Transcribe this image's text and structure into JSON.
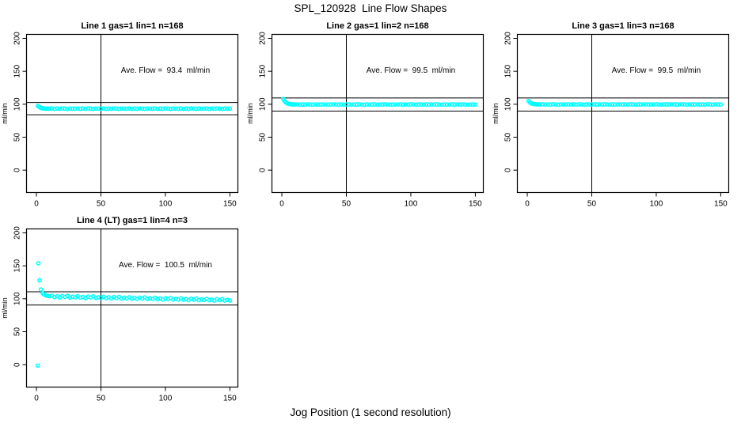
{
  "main_title": "SPL_120928  Line Flow Shapes",
  "xlabel_bottom": "Jog Position (1 second resolution)",
  "colors": {
    "points": "#00FFFF",
    "axis": "#000000",
    "background": "#FFFFFF"
  },
  "chart_data": [
    {
      "type": "scatter",
      "title": "Line 1 gas=1 lin=1 n=168",
      "ylabel": "ml/min",
      "ave_flow_ml_min": 93.4,
      "ave_flow_text": "Ave. Flow =  93.4  ml/min",
      "annotation_xy": [
        100,
        148
      ],
      "xlim": [
        -7.7,
        156.2
      ],
      "ylim": [
        -34,
        206
      ],
      "xticks": [
        0,
        50,
        100,
        150
      ],
      "yticks": [
        0,
        50,
        100,
        150,
        200
      ],
      "vline_x": 50,
      "hlines": [
        102.7,
        84.1
      ],
      "points": [
        [
          1,
          97.5
        ],
        [
          2,
          96
        ],
        [
          3,
          95
        ],
        [
          4,
          94.2
        ],
        [
          5,
          93.8
        ],
        [
          6,
          93.5
        ],
        [
          7,
          93.3
        ],
        [
          8,
          93.6
        ],
        [
          9,
          93.2
        ],
        [
          10,
          93.3
        ],
        [
          12,
          93.6
        ],
        [
          14,
          93.1
        ],
        [
          16,
          93.5
        ],
        [
          18,
          93.2
        ],
        [
          20,
          93.7
        ],
        [
          22,
          93.4
        ],
        [
          24,
          93.0
        ],
        [
          26,
          93.5
        ],
        [
          28,
          93.3
        ],
        [
          30,
          93.3
        ],
        [
          32,
          93.6
        ],
        [
          34,
          93.1
        ],
        [
          36,
          93.5
        ],
        [
          38,
          93.2
        ],
        [
          40,
          93.7
        ],
        [
          42,
          93.4
        ],
        [
          44,
          93.0
        ],
        [
          46,
          93.5
        ],
        [
          48,
          93.3
        ],
        [
          50,
          93.3
        ],
        [
          52,
          93.6
        ],
        [
          54,
          93.1
        ],
        [
          56,
          93.5
        ],
        [
          58,
          93.2
        ],
        [
          60,
          93.7
        ],
        [
          62,
          93.4
        ],
        [
          64,
          93.0
        ],
        [
          66,
          93.5
        ],
        [
          68,
          93.3
        ],
        [
          70,
          93.3
        ],
        [
          72,
          93.6
        ],
        [
          74,
          93.1
        ],
        [
          76,
          93.5
        ],
        [
          78,
          93.2
        ],
        [
          80,
          93.7
        ],
        [
          82,
          93.4
        ],
        [
          84,
          93.0
        ],
        [
          86,
          93.5
        ],
        [
          88,
          93.3
        ],
        [
          90,
          93.3
        ],
        [
          92,
          93.6
        ],
        [
          94,
          93.1
        ],
        [
          96,
          93.5
        ],
        [
          98,
          93.2
        ],
        [
          100,
          93.7
        ],
        [
          102,
          93.4
        ],
        [
          104,
          93.0
        ],
        [
          106,
          93.5
        ],
        [
          108,
          93.3
        ],
        [
          110,
          93.3
        ],
        [
          112,
          93.6
        ],
        [
          114,
          93.1
        ],
        [
          116,
          93.5
        ],
        [
          118,
          93.2
        ],
        [
          120,
          93.7
        ],
        [
          122,
          93.4
        ],
        [
          124,
          93.0
        ],
        [
          126,
          93.5
        ],
        [
          128,
          93.3
        ],
        [
          130,
          93.3
        ],
        [
          132,
          93.6
        ],
        [
          134,
          93.1
        ],
        [
          136,
          93.5
        ],
        [
          138,
          93.2
        ],
        [
          140,
          93.7
        ],
        [
          142,
          93.4
        ],
        [
          144,
          93.0
        ],
        [
          146,
          93.5
        ],
        [
          148,
          93.3
        ],
        [
          150,
          93.4
        ]
      ]
    },
    {
      "type": "scatter",
      "title": "Line 2 gas=1 lin=2 n=168",
      "ylabel": "ml/min",
      "ave_flow_ml_min": 99.5,
      "ave_flow_text": "Ave. Flow =  99.5  ml/min",
      "annotation_xy": [
        100,
        148
      ],
      "xlim": [
        -7.7,
        156.2
      ],
      "ylim": [
        -34,
        206
      ],
      "xticks": [
        0,
        50,
        100,
        150
      ],
      "yticks": [
        0,
        50,
        100,
        150,
        200
      ],
      "vline_x": 50,
      "hlines": [
        109.5,
        89.6
      ],
      "points": [
        [
          1,
          108
        ],
        [
          2,
          105
        ],
        [
          3,
          103
        ],
        [
          4,
          101.5
        ],
        [
          5,
          100.8
        ],
        [
          6,
          100.3
        ],
        [
          7,
          100.0
        ],
        [
          8,
          99.8
        ],
        [
          9,
          99.7
        ],
        [
          10,
          99.6
        ],
        [
          12,
          99.8
        ],
        [
          14,
          99.4
        ],
        [
          16,
          99.7
        ],
        [
          18,
          99.5
        ],
        [
          20,
          99.9
        ],
        [
          22,
          99.6
        ],
        [
          24,
          99.3
        ],
        [
          26,
          99.7
        ],
        [
          28,
          99.5
        ],
        [
          30,
          99.6
        ],
        [
          32,
          99.8
        ],
        [
          34,
          99.4
        ],
        [
          36,
          99.7
        ],
        [
          38,
          99.5
        ],
        [
          40,
          99.9
        ],
        [
          42,
          99.6
        ],
        [
          44,
          99.3
        ],
        [
          46,
          99.7
        ],
        [
          48,
          99.5
        ],
        [
          50,
          99.6
        ],
        [
          52,
          99.8
        ],
        [
          54,
          99.4
        ],
        [
          56,
          99.7
        ],
        [
          58,
          99.5
        ],
        [
          60,
          99.9
        ],
        [
          62,
          99.6
        ],
        [
          64,
          99.3
        ],
        [
          66,
          99.7
        ],
        [
          68,
          99.5
        ],
        [
          70,
          99.6
        ],
        [
          72,
          99.8
        ],
        [
          74,
          99.4
        ],
        [
          76,
          99.7
        ],
        [
          78,
          99.5
        ],
        [
          80,
          99.9
        ],
        [
          82,
          99.6
        ],
        [
          84,
          99.3
        ],
        [
          86,
          99.7
        ],
        [
          88,
          99.5
        ],
        [
          90,
          99.6
        ],
        [
          92,
          99.8
        ],
        [
          94,
          99.4
        ],
        [
          96,
          99.7
        ],
        [
          98,
          99.5
        ],
        [
          100,
          99.9
        ],
        [
          102,
          99.6
        ],
        [
          104,
          99.3
        ],
        [
          106,
          99.7
        ],
        [
          108,
          99.5
        ],
        [
          110,
          99.6
        ],
        [
          112,
          99.8
        ],
        [
          114,
          99.4
        ],
        [
          116,
          99.7
        ],
        [
          118,
          99.5
        ],
        [
          120,
          99.9
        ],
        [
          122,
          99.6
        ],
        [
          124,
          99.3
        ],
        [
          126,
          99.7
        ],
        [
          128,
          99.5
        ],
        [
          130,
          99.6
        ],
        [
          132,
          99.8
        ],
        [
          134,
          99.4
        ],
        [
          136,
          99.7
        ],
        [
          138,
          99.5
        ],
        [
          140,
          99.9
        ],
        [
          142,
          99.6
        ],
        [
          144,
          99.3
        ],
        [
          146,
          99.7
        ],
        [
          148,
          99.5
        ],
        [
          150,
          99.6
        ]
      ]
    },
    {
      "type": "scatter",
      "title": "Line 3 gas=1 lin=3 n=168",
      "ylabel": "ml/min",
      "ave_flow_ml_min": 99.5,
      "ave_flow_text": "Ave. Flow =  99.5  ml/min",
      "annotation_xy": [
        100,
        148
      ],
      "xlim": [
        -7.7,
        156.2
      ],
      "ylim": [
        -34,
        206
      ],
      "xticks": [
        0,
        50,
        100,
        150
      ],
      "yticks": [
        0,
        50,
        100,
        150,
        200
      ],
      "vline_x": 50,
      "hlines": [
        109.5,
        89.6
      ],
      "points": [
        [
          1,
          105
        ],
        [
          2,
          103
        ],
        [
          3,
          101.5
        ],
        [
          4,
          100.7
        ],
        [
          5,
          100.3
        ],
        [
          6,
          100.1
        ],
        [
          7,
          99.9
        ],
        [
          8,
          99.8
        ],
        [
          9,
          99.9
        ],
        [
          10,
          99.7
        ],
        [
          12,
          99.9
        ],
        [
          14,
          99.5
        ],
        [
          16,
          99.8
        ],
        [
          18,
          99.6
        ],
        [
          20,
          100.0
        ],
        [
          22,
          99.7
        ],
        [
          24,
          99.4
        ],
        [
          26,
          99.8
        ],
        [
          28,
          99.6
        ],
        [
          30,
          99.7
        ],
        [
          32,
          99.9
        ],
        [
          34,
          99.5
        ],
        [
          36,
          99.8
        ],
        [
          38,
          99.6
        ],
        [
          40,
          100.0
        ],
        [
          42,
          99.7
        ],
        [
          44,
          99.4
        ],
        [
          46,
          99.8
        ],
        [
          48,
          99.6
        ],
        [
          50,
          99.7
        ],
        [
          52,
          99.9
        ],
        [
          54,
          99.5
        ],
        [
          56,
          99.8
        ],
        [
          58,
          99.6
        ],
        [
          60,
          100.0
        ],
        [
          62,
          99.7
        ],
        [
          64,
          99.4
        ],
        [
          66,
          99.8
        ],
        [
          68,
          99.6
        ],
        [
          70,
          99.7
        ],
        [
          72,
          99.9
        ],
        [
          74,
          99.5
        ],
        [
          76,
          99.8
        ],
        [
          78,
          99.6
        ],
        [
          80,
          100.0
        ],
        [
          82,
          99.7
        ],
        [
          84,
          99.4
        ],
        [
          86,
          99.8
        ],
        [
          88,
          99.6
        ],
        [
          90,
          99.7
        ],
        [
          92,
          99.9
        ],
        [
          94,
          99.5
        ],
        [
          96,
          99.8
        ],
        [
          98,
          99.6
        ],
        [
          100,
          100.0
        ],
        [
          102,
          99.7
        ],
        [
          104,
          99.4
        ],
        [
          106,
          99.8
        ],
        [
          108,
          99.6
        ],
        [
          110,
          99.7
        ],
        [
          112,
          99.9
        ],
        [
          114,
          99.5
        ],
        [
          116,
          99.8
        ],
        [
          118,
          99.6
        ],
        [
          120,
          100.0
        ],
        [
          122,
          99.7
        ],
        [
          124,
          99.4
        ],
        [
          126,
          99.8
        ],
        [
          128,
          99.6
        ],
        [
          130,
          99.7
        ],
        [
          132,
          99.9
        ],
        [
          134,
          99.5
        ],
        [
          136,
          99.8
        ],
        [
          138,
          99.6
        ],
        [
          140,
          100.0
        ],
        [
          142,
          99.7
        ],
        [
          144,
          99.4
        ],
        [
          146,
          99.8
        ],
        [
          148,
          99.6
        ],
        [
          150,
          99.7
        ]
      ]
    },
    {
      "type": "scatter",
      "title": "Line 4 (LT) gas=1 lin=4 n=3",
      "ylabel": "ml/min",
      "ave_flow_ml_min": 100.5,
      "ave_flow_text": "Ave. Flow =  100.5  ml/min",
      "annotation_xy": [
        100,
        148
      ],
      "xlim": [
        -7.7,
        156.2
      ],
      "ylim": [
        -34,
        206
      ],
      "xticks": [
        0,
        50,
        100,
        150
      ],
      "yticks": [
        0,
        50,
        100,
        150,
        200
      ],
      "vline_x": 50,
      "hlines": [
        110.6,
        90.5
      ],
      "points": [
        [
          1,
          -1.5
        ],
        [
          1.5,
          154
        ],
        [
          2.5,
          128
        ],
        [
          3.5,
          114
        ],
        [
          5,
          108
        ],
        [
          6,
          106.5
        ],
        [
          7,
          105.5
        ],
        [
          8,
          104.8
        ],
        [
          9,
          104.2
        ],
        [
          10,
          103.8
        ],
        [
          12,
          104.7
        ],
        [
          14,
          102.6
        ],
        [
          16,
          103.7
        ],
        [
          18,
          101.9
        ],
        [
          20,
          104.1
        ],
        [
          22,
          102.7
        ],
        [
          24,
          104.4
        ],
        [
          26,
          101.9
        ],
        [
          28,
          103.1
        ],
        [
          30,
          102.1
        ],
        [
          32,
          103.9
        ],
        [
          34,
          101.8
        ],
        [
          36,
          102.9
        ],
        [
          38,
          101.2
        ],
        [
          40,
          103.3
        ],
        [
          42,
          102.0
        ],
        [
          44,
          103.7
        ],
        [
          46,
          101.3
        ],
        [
          48,
          102.3
        ],
        [
          50,
          101.3
        ],
        [
          52,
          103.1
        ],
        [
          54,
          101.0
        ],
        [
          56,
          102.2
        ],
        [
          58,
          100.4
        ],
        [
          60,
          102.5
        ],
        [
          62,
          101.1
        ],
        [
          64,
          102.8
        ],
        [
          66,
          100.4
        ],
        [
          68,
          101.5
        ],
        [
          70,
          100.5
        ],
        [
          72,
          102.3
        ],
        [
          74,
          100.2
        ],
        [
          76,
          101.3
        ],
        [
          78,
          99.6
        ],
        [
          80,
          101.7
        ],
        [
          82,
          100.3
        ],
        [
          84,
          102.0
        ],
        [
          86,
          99.6
        ],
        [
          88,
          100.7
        ],
        [
          90,
          99.7
        ],
        [
          92,
          101.5
        ],
        [
          94,
          99.4
        ],
        [
          96,
          100.5
        ],
        [
          98,
          98.8
        ],
        [
          100,
          100.9
        ],
        [
          102,
          99.5
        ],
        [
          104,
          101.2
        ],
        [
          106,
          98.8
        ],
        [
          108,
          99.9
        ],
        [
          110,
          98.9
        ],
        [
          112,
          100.7
        ],
        [
          114,
          98.6
        ],
        [
          116,
          99.7
        ],
        [
          118,
          98.0
        ],
        [
          120,
          100.1
        ],
        [
          122,
          98.7
        ],
        [
          124,
          100.4
        ],
        [
          126,
          98.0
        ],
        [
          128,
          99.1
        ],
        [
          130,
          98.1
        ],
        [
          132,
          99.9
        ],
        [
          134,
          97.8
        ],
        [
          136,
          98.9
        ],
        [
          138,
          97.2
        ],
        [
          140,
          99.3
        ],
        [
          142,
          97.9
        ],
        [
          144,
          99.6
        ],
        [
          146,
          97.2
        ],
        [
          148,
          98.3
        ],
        [
          150,
          97.3
        ]
      ]
    }
  ]
}
